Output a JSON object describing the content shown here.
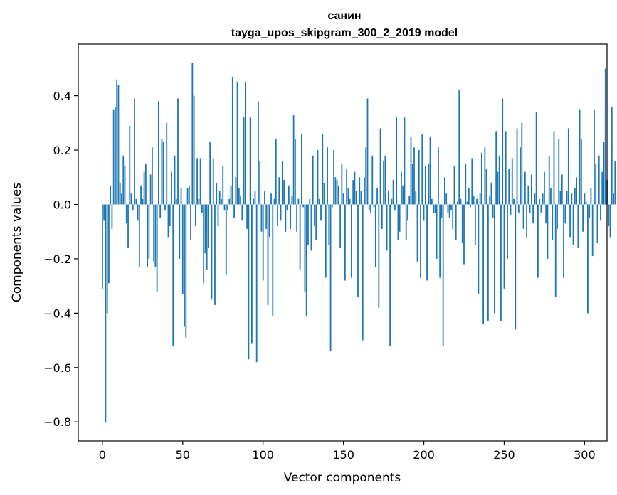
{
  "chart_data": {
    "type": "bar",
    "title": "санин",
    "subtitle": "tayga_upos_skipgram_300_2_2019 model",
    "xlabel": "Vector components",
    "ylabel": "Components values",
    "xlim": [
      -15,
      314
    ],
    "ylim": [
      -0.87,
      0.59
    ],
    "xticks": [
      0,
      50,
      100,
      150,
      200,
      250,
      300
    ],
    "yticks": [
      -0.8,
      -0.6,
      -0.4,
      -0.2,
      0.0,
      0.2,
      0.4
    ],
    "ytick_labels": [
      "−0.8",
      "−0.6",
      "−0.4",
      "−0.2",
      "0.0",
      "0.2",
      "0.4"
    ],
    "bar_color": "#1f77b4",
    "grid": false,
    "values": [
      -0.31,
      -0.06,
      -0.8,
      -0.4,
      -0.29,
      0.07,
      -0.09,
      0.35,
      0.36,
      0.46,
      0.44,
      0.08,
      0.04,
      0.18,
      0.14,
      -0.07,
      -0.16,
      0.29,
      0.04,
      -0.02,
      0.39,
      0.02,
      -0.06,
      -0.23,
      0.07,
      0.02,
      0.12,
      0.15,
      -0.23,
      -0.2,
      0.11,
      0.21,
      -0.21,
      -0.23,
      -0.32,
      0.38,
      -0.05,
      0.24,
      0.23,
      -0.02,
      0.3,
      -0.12,
      -0.08,
      0.12,
      -0.52,
      0.18,
      0.02,
      0.39,
      -0.2,
      0.06,
      -0.33,
      -0.45,
      -0.49,
      0.06,
      0.07,
      -0.13,
      0.52,
      0.4,
      -0.08,
      0.17,
      0.02,
      0.17,
      -0.03,
      -0.29,
      -0.18,
      -0.24,
      -0.16,
      0.23,
      -0.35,
      0.17,
      -0.37,
      0.08,
      -0.08,
      0.05,
      0.02,
      0.14,
      -0.02,
      -0.26,
      -0.02,
      0.02,
      0.07,
      0.47,
      -0.05,
      0.1,
      0.45,
      0.06,
      0.03,
      -0.06,
      0.32,
      0.45,
      -0.09,
      -0.57,
      0.32,
      -0.51,
      0.02,
      0.05,
      -0.58,
      0.38,
      0.16,
      -0.1,
      -0.28,
      0.05,
      -0.09,
      -0.37,
      -0.12,
      0.04,
      -0.41,
      0.02,
      0.24,
      -0.08,
      0.1,
      -0.06,
      0.16,
      0.09,
      -0.1,
      -0.02,
      0.07,
      -0.09,
      0.03,
      0.33,
      0.24,
      -0.1,
      0.02,
      -0.24,
      0.26,
      -0.01,
      -0.32,
      -0.41,
      -0.15,
      0.02,
      -0.17,
      0.18,
      -0.08,
      -0.13,
      0.2,
      0.02,
      -0.06,
      0.26,
      0.08,
      -0.27,
      0.21,
      -0.15,
      -0.54,
      -0.01,
      0.2,
      0.1,
      0.09,
      0.07,
      -0.16,
      0.15,
      0.04,
      -0.28,
      0.13,
      0.06,
      0.02,
      -0.27,
      0.09,
      0.12,
      0.05,
      -0.34,
      0.1,
      0.05,
      -0.5,
      0.1,
      0.21,
      0.39,
      -0.02,
      -0.03,
      0.18,
      -0.01,
      -0.23,
      0.06,
      -0.38,
      0.28,
      -0.09,
      0.16,
      0.18,
      -0.17,
      0.05,
      -0.52,
      0.02,
      0.09,
      -0.02,
      0.32,
      -0.13,
      -0.1,
      0.12,
      0.07,
      0.32,
      -0.13,
      -0.06,
      0.03,
      0.25,
      0.15,
      0.21,
      0.05,
      -0.21,
      0.2,
      -0.27,
      0.26,
      -0.06,
      0.14,
      -0.28,
      0.15,
      0.25,
      0.02,
      -0.03,
      -0.03,
      -0.2,
      0.21,
      -0.27,
      -0.05,
      -0.52,
      0.1,
      0.04,
      -0.03,
      -0.05,
      -0.02,
      -0.09,
      0.14,
      -0.13,
      0.01,
      0.42,
      0.02,
      -0.14,
      -0.22,
      0.15,
      0.01,
      0.06,
      -0.01,
      0.17,
      0.03,
      -0.15,
      0.02,
      -0.33,
      0.04,
      0.19,
      -0.44,
      0.21,
      0.13,
      -0.43,
      0.03,
      0.08,
      -0.05,
      -0.4,
      0.27,
      0.12,
      0.18,
      -0.43,
      0.39,
      -0.31,
      0.27,
      -0.2,
      0.13,
      -0.04,
      0.17,
      0.02,
      -0.46,
      0.28,
      -0.03,
      0.21,
      0.3,
      -0.09,
      0.12,
      -0.12,
      0.07,
      -0.03,
      0.11,
      -0.07,
      0.04,
      0.34,
      -0.27,
      0.02,
      -0.03,
      0.04,
      0.12,
      -0.07,
      -0.2,
      0.18,
      0.06,
      -0.13,
      0.27,
      -0.34,
      -0.09,
      0.24,
      0.05,
      0.11,
      -0.27,
      -0.07,
      0.05,
      0.28,
      -0.12,
      0.04,
      -0.15,
      0.06,
      0.1,
      -0.16,
      0.35,
      0.24,
      -0.1,
      0.04,
      0.01,
      -0.4,
      -0.05,
      0.06,
      -0.19,
      0.35,
      0.15,
      -0.14,
      0.18,
      -0.06,
      0.12,
      0.23,
      0.5,
      0.09,
      -0.08,
      -0.12,
      0.36,
      0.04,
      0.16
    ]
  }
}
